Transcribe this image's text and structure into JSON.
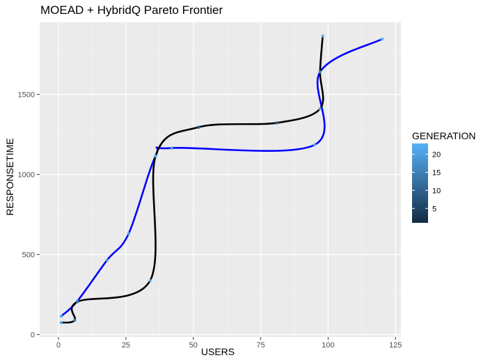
{
  "chart_data": {
    "type": "line",
    "title": "MOEAD + HybridQ Pareto Frontier",
    "xlabel": "USERS",
    "ylabel": "RESPONSETIME",
    "xlim": [
      -7,
      127
    ],
    "ylim": [
      -15,
      1950
    ],
    "xticks": [
      0,
      25,
      50,
      75,
      100,
      125
    ],
    "yticks": [
      0,
      500,
      1000,
      1500
    ],
    "grid": true,
    "legend": {
      "title": "GENERATION",
      "placement": "right",
      "range": [
        1,
        23
      ],
      "ticks": [
        5,
        10,
        15,
        20
      ],
      "color_low": "#132B43",
      "color_high": "#56B1F7"
    },
    "series": [
      {
        "color": "#0000ff",
        "points": [
          {
            "x": 1,
            "y": 115,
            "g": 22
          },
          {
            "x": 7,
            "y": 210,
            "g": 21
          },
          {
            "x": 18,
            "y": 465,
            "g": 20
          },
          {
            "x": 26,
            "y": 630,
            "g": 20
          },
          {
            "x": 36,
            "y": 1115,
            "g": 21
          },
          {
            "x": 42,
            "y": 1165,
            "g": 20
          },
          {
            "x": 95,
            "y": 1185,
            "g": 22
          },
          {
            "x": 97,
            "y": 1640,
            "g": 21
          },
          {
            "x": 120,
            "y": 1845,
            "g": 22
          }
        ]
      },
      {
        "color": "#000000",
        "points": [
          {
            "x": 1,
            "y": 75,
            "g": 21
          },
          {
            "x": 6,
            "y": 90,
            "g": 15
          },
          {
            "x": 7,
            "y": 205,
            "g": 14
          },
          {
            "x": 34,
            "y": 338,
            "g": 22
          },
          {
            "x": 36,
            "y": 1115,
            "g": 21
          },
          {
            "x": 52,
            "y": 1295,
            "g": 8
          },
          {
            "x": 81,
            "y": 1322,
            "g": 10
          },
          {
            "x": 97,
            "y": 1410,
            "g": 21
          },
          {
            "x": 97,
            "y": 1640,
            "g": 16
          },
          {
            "x": 98,
            "y": 1865,
            "g": 23
          }
        ]
      }
    ]
  }
}
